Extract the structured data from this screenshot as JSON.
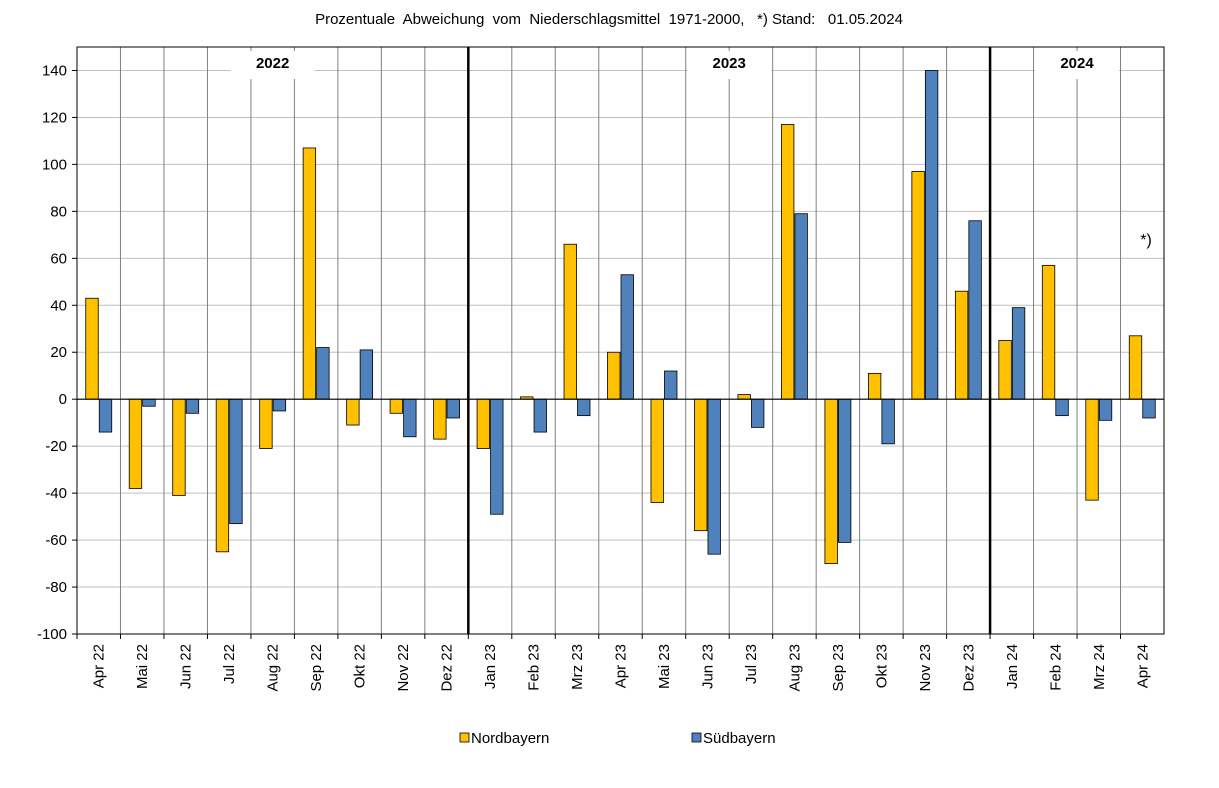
{
  "chart_data": {
    "type": "bar",
    "title": "Prozentuale  Abweichung  vom  Niederschlagsmittel  1971-2000,   *) Stand:   01.05.2024",
    "categories": [
      "Apr 22",
      "Mai 22",
      "Jun 22",
      "Jul 22",
      "Aug 22",
      "Sep 22",
      "Okt 22",
      "Nov 22",
      "Dez 22",
      "Jan 23",
      "Feb 23",
      "Mrz 23",
      "Apr 23",
      "Mai 23",
      "Jun 23",
      "Jul 23",
      "Aug 23",
      "Sep 23",
      "Okt 23",
      "Nov 23",
      "Dez 23",
      "Jan 24",
      "Feb 24",
      "Mrz 24",
      "Apr 24"
    ],
    "series": [
      {
        "name": "Nordbayern",
        "color": "#FFC000",
        "values": [
          43,
          -38,
          -41,
          -65,
          -21,
          107,
          -11,
          -6,
          -17,
          -21,
          1,
          66,
          20,
          -44,
          -56,
          2,
          117,
          -70,
          11,
          97,
          46,
          25,
          57,
          -43,
          27
        ]
      },
      {
        "name": "Südbayern",
        "color": "#4F81BD",
        "values": [
          -14,
          -3,
          -6,
          -53,
          -5,
          22,
          21,
          -16,
          -8,
          -49,
          -14,
          -7,
          53,
          12,
          -66,
          -12,
          79,
          -61,
          -19,
          140,
          76,
          39,
          -7,
          -9,
          -8
        ]
      }
    ],
    "ylim": [
      -100,
      150
    ],
    "yticks": [
      140,
      120,
      100,
      80,
      60,
      40,
      20,
      0,
      -20,
      -40,
      -60,
      -80,
      -100
    ],
    "year_groups": [
      {
        "label": "2022",
        "start": 0,
        "end": 8
      },
      {
        "label": "2023",
        "start": 9,
        "end": 20
      },
      {
        "label": "2024",
        "start": 21,
        "end": 24
      }
    ],
    "annotation": "*)",
    "grid": true,
    "legend_placement": "bottom"
  }
}
